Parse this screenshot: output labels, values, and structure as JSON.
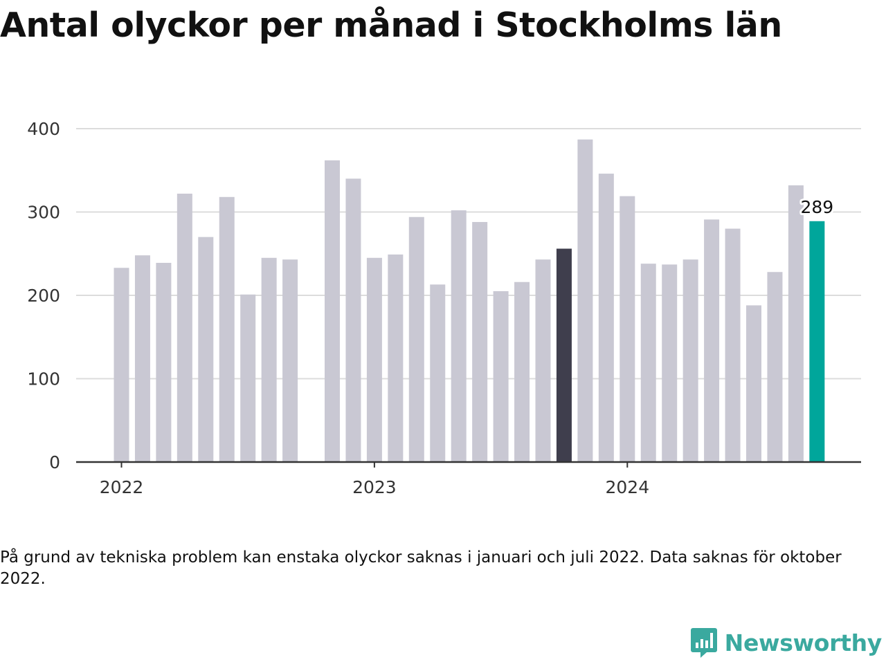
{
  "title": "Antal olyckor per månad i Stockholms län",
  "note": "På grund av tekniska problem kan enstaka olyckor saknas i januari och juli 2022. Data saknas för oktober 2022.",
  "brand": {
    "name": "Newsworthy",
    "icon": "bar-chart-bubble-icon",
    "color": "#3aa99f"
  },
  "chart_data": {
    "type": "bar",
    "ylim": [
      0,
      400
    ],
    "y_ticks": [
      0,
      100,
      200,
      300,
      400
    ],
    "x_tick_labels": [
      {
        "label": "2022",
        "at": "2022-01"
      },
      {
        "label": "2023",
        "at": "2023-01"
      },
      {
        "label": "2024",
        "at": "2024-01"
      }
    ],
    "grid": true,
    "colors": {
      "default": "#c9c8d3",
      "highlight_dark": "#3f3e4d",
      "highlight_teal": "#00a69b"
    },
    "categories": [
      "2022-01",
      "2022-02",
      "2022-03",
      "2022-04",
      "2022-05",
      "2022-06",
      "2022-07",
      "2022-08",
      "2022-09",
      "2022-10",
      "2022-11",
      "2022-12",
      "2023-01",
      "2023-02",
      "2023-03",
      "2023-04",
      "2023-05",
      "2023-06",
      "2023-07",
      "2023-08",
      "2023-09",
      "2023-10",
      "2023-11",
      "2023-12",
      "2024-01",
      "2024-02",
      "2024-03",
      "2024-04",
      "2024-05",
      "2024-06",
      "2024-07",
      "2024-08",
      "2024-09",
      "2024-10",
      "2024-11",
      "2024-12"
    ],
    "values": [
      233,
      248,
      239,
      322,
      270,
      318,
      201,
      245,
      243,
      null,
      362,
      340,
      245,
      249,
      294,
      213,
      302,
      288,
      205,
      216,
      243,
      256,
      387,
      346,
      319,
      238,
      237,
      243,
      291,
      280,
      188,
      228,
      332,
      289,
      null,
      null
    ],
    "highlights": [
      {
        "category": "2023-10",
        "color": "highlight_dark"
      },
      {
        "category": "2024-10",
        "color": "highlight_teal",
        "label": "289"
      }
    ]
  }
}
